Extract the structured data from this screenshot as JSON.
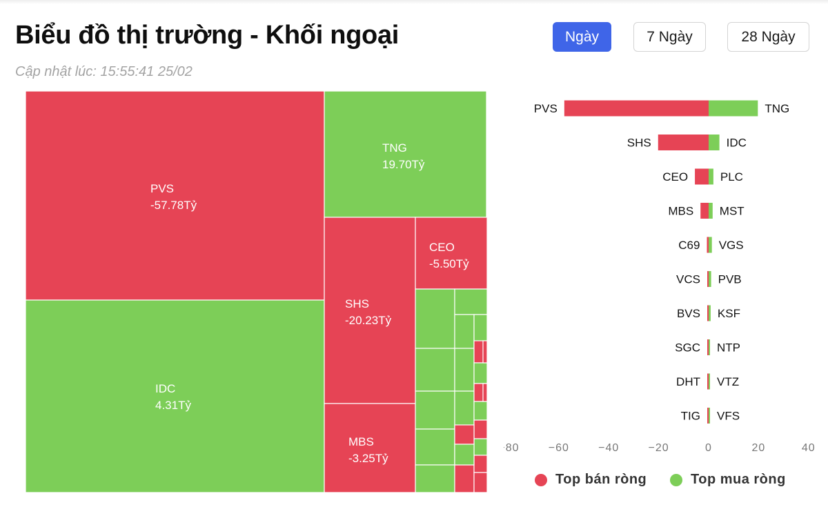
{
  "header": {
    "title": "Biểu đồ thị trường - Khối ngoại",
    "updated": "Cập nhật lúc: 15:55:41 25/02"
  },
  "range_buttons": [
    {
      "label": "Ngày",
      "active": true
    },
    {
      "label": "7 Ngày",
      "active": false
    },
    {
      "label": "28 Ngày",
      "active": false
    }
  ],
  "colors": {
    "sell": "#e64455",
    "buy": "#7dce58"
  },
  "legend": {
    "sell": "Top bán ròng",
    "buy": "Top mua ròng"
  },
  "chart_data": [
    {
      "type": "treemap",
      "unit": "Tỷ",
      "labeled_cells": [
        {
          "name": "PVS",
          "value": -57.78,
          "label": "-57.78Tỷ"
        },
        {
          "name": "IDC",
          "value": 4.31,
          "label": "4.31Tỷ"
        },
        {
          "name": "TNG",
          "value": 19.7,
          "label": "19.70Tỷ"
        },
        {
          "name": "SHS",
          "value": -20.23,
          "label": "-20.23Tỷ"
        },
        {
          "name": "CEO",
          "value": -5.5,
          "label": "-5.50Tỷ"
        },
        {
          "name": "MBS",
          "value": -3.25,
          "label": "-3.25Tỷ"
        }
      ]
    },
    {
      "type": "bar",
      "orientation": "horizontal-diverging",
      "xlim": [
        -80,
        40
      ],
      "xticks": [
        "−80",
        "−60",
        "−40",
        "−20",
        "0",
        "20",
        "40"
      ],
      "rows": [
        {
          "sell": "PVS",
          "sell_value": -57.78,
          "buy": "TNG",
          "buy_value": 19.7
        },
        {
          "sell": "SHS",
          "sell_value": -20.23,
          "buy": "IDC",
          "buy_value": 4.31
        },
        {
          "sell": "CEO",
          "sell_value": -5.5,
          "buy": "PLC",
          "buy_value": 1.9
        },
        {
          "sell": "MBS",
          "sell_value": -3.25,
          "buy": "MST",
          "buy_value": 1.6
        },
        {
          "sell": "C69",
          "sell_value": -0.7,
          "buy": "VGS",
          "buy_value": 1.3
        },
        {
          "sell": "VCS",
          "sell_value": -0.3,
          "buy": "PVB",
          "buy_value": 1.0
        },
        {
          "sell": "BVS",
          "sell_value": -0.2,
          "buy": "KSF",
          "buy_value": 0.8
        },
        {
          "sell": "SGC",
          "sell_value": -0.1,
          "buy": "NTP",
          "buy_value": 0.4
        },
        {
          "sell": "DHT",
          "sell_value": -0.1,
          "buy": "VTZ",
          "buy_value": 0.3
        },
        {
          "sell": "TIG",
          "sell_value": -0.05,
          "buy": "VFS",
          "buy_value": 0.2
        }
      ]
    }
  ]
}
